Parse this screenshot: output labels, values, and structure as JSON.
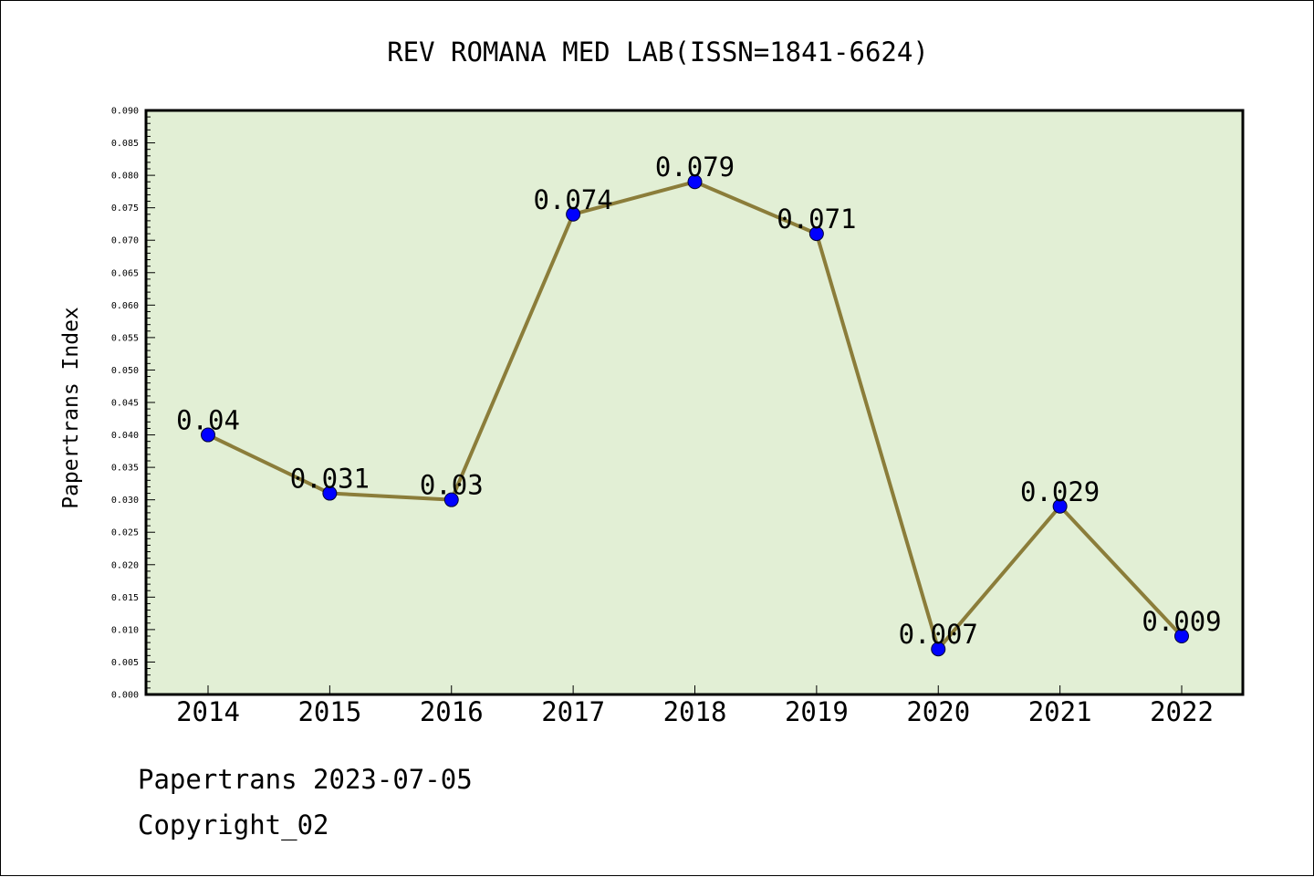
{
  "chart_data": {
    "type": "line",
    "title": "REV ROMANA MED LAB(ISSN=1841-6624)",
    "xlabel": "",
    "ylabel": "Papertrans Index",
    "categories": [
      "2014",
      "2015",
      "2016",
      "2017",
      "2018",
      "2019",
      "2020",
      "2021",
      "2022"
    ],
    "series": [
      {
        "values": [
          0.04,
          0.031,
          0.03,
          0.074,
          0.079,
          0.071,
          0.007,
          0.029,
          0.009
        ],
        "labels": [
          "0.04",
          "0.031",
          "0.03",
          "0.074",
          "0.079",
          "0.071",
          "0.007",
          "0.029",
          "0.009"
        ]
      }
    ],
    "ylim": [
      0,
      0.09
    ],
    "y_major_step": 0.005,
    "y_minor_step": 0.001,
    "y_tick_decimals": 3,
    "grid": false,
    "legend": "none",
    "colors": {
      "plot_background": "#e2efd5",
      "line": "#8b7d3a",
      "marker": "#0000ff",
      "axis": "#000000"
    }
  },
  "footer": {
    "line1": "Papertrans 2023-07-05",
    "line2": "Copyright_02"
  }
}
